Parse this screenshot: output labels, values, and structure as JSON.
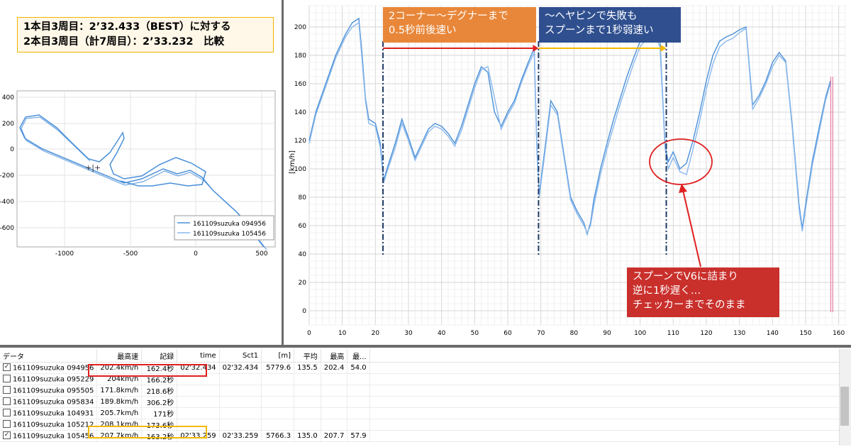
{
  "title": {
    "line1": "1本目3周目：2’32.433（BEST）に対する",
    "line2": "2本目3周目（計7周目）：2’33.232　比較"
  },
  "track_map": {
    "x_ticks": [
      "-1000",
      "-500",
      "0",
      "500"
    ],
    "y_ticks": [
      "400",
      "200",
      "0",
      "-200",
      "-400",
      "-600"
    ],
    "legend": [
      "161109suzuka 094956",
      "161109suzuka 105456"
    ]
  },
  "speed_chart": {
    "y_unit": "[km/h]",
    "x_ticks": [
      "0",
      "10",
      "20",
      "30",
      "40",
      "50",
      "60",
      "70",
      "80",
      "90",
      "100",
      "110",
      "120",
      "130",
      "140",
      "150",
      "160"
    ],
    "y_ticks": [
      "200",
      "180",
      "160",
      "140",
      "120",
      "100",
      "80",
      "60",
      "40",
      "20",
      "0"
    ]
  },
  "callouts": {
    "orange_line1": "2コーナー～デグナーまで",
    "orange_line2": "0.5秒前後速い",
    "blue_line1": "～ヘヤピンで失敗も",
    "blue_line2": "スプーンまで1秒弱速い",
    "red_line1": "スプーンでV6に詰まり",
    "red_line2": "逆に1秒遅く…",
    "red_line3": "チェッカーまでそのまま"
  },
  "table": {
    "headers": [
      "データ",
      "最高速",
      "記録",
      "time",
      "Sct1",
      "[m]",
      "平均",
      "最高",
      "最..."
    ],
    "rows": [
      {
        "checked": "✓",
        "name": "161109suzuka 094956",
        "maxspeed": "202.4km/h",
        "record": "162.4秒",
        "time": "02'32.434",
        "sct1": "02'32.434",
        "m": "5779.6",
        "avg": "135.5",
        "max": "202.4",
        "min": "54.0"
      },
      {
        "checked": "",
        "name": "161109suzuka 095229",
        "maxspeed": "204km/h",
        "record": "166.2秒",
        "time": "",
        "sct1": "",
        "m": "",
        "avg": "",
        "max": "",
        "min": ""
      },
      {
        "checked": "",
        "name": "161109suzuka 095505",
        "maxspeed": "171.8km/h",
        "record": "218.6秒",
        "time": "",
        "sct1": "",
        "m": "",
        "avg": "",
        "max": "",
        "min": ""
      },
      {
        "checked": "",
        "name": "161109suzuka 095834",
        "maxspeed": "189.8km/h",
        "record": "306.2秒",
        "time": "",
        "sct1": "",
        "m": "",
        "avg": "",
        "max": "",
        "min": ""
      },
      {
        "checked": "",
        "name": "161109suzuka 104931",
        "maxspeed": "205.7km/h",
        "record": "171秒",
        "time": "",
        "sct1": "",
        "m": "",
        "avg": "",
        "max": "",
        "min": ""
      },
      {
        "checked": "",
        "name": "161109suzuka 105212",
        "maxspeed": "208.1km/h",
        "record": "173.6秒",
        "time": "",
        "sct1": "",
        "m": "",
        "avg": "",
        "max": "",
        "min": ""
      },
      {
        "checked": "✓",
        "name": "161109suzuka 105456",
        "maxspeed": "207.7km/h",
        "record": "163.2秒",
        "time": "02'33.259",
        "sct1": "02'33.259",
        "m": "5766.3",
        "avg": "135.0",
        "max": "207.7",
        "min": "57.9"
      }
    ]
  },
  "colors": {
    "series": "#4a90d9",
    "series2": "#8ab8ec",
    "orange": "#e8873a",
    "blue": "#2f4f8f",
    "red": "#c9302c",
    "highlight_red": "#e02020",
    "highlight_yellow": "#f5b800"
  },
  "chart_data": {
    "type": "line",
    "xlabel": "",
    "ylabel": "[km/h]",
    "xlim": [
      0,
      162
    ],
    "ylim": [
      -10,
      215
    ],
    "series": [
      {
        "name": "161109suzuka 094956",
        "x": [
          0,
          2,
          5,
          8,
          11,
          13,
          15,
          16,
          17,
          18,
          20,
          21.5,
          22.5,
          23.5,
          26,
          28,
          30,
          32,
          34,
          36,
          38,
          40,
          42,
          44,
          46,
          48,
          50,
          52,
          54,
          56,
          58,
          60,
          62,
          64,
          66,
          68,
          68.8,
          69.5,
          71,
          73,
          75,
          77,
          79,
          81,
          83,
          84,
          85,
          86,
          88,
          90,
          92,
          94,
          96,
          98,
          100,
          102,
          104,
          106,
          107.5,
          108.5,
          110,
          112,
          114,
          116,
          118,
          120,
          122,
          124,
          126,
          128,
          130,
          132,
          133,
          134,
          136,
          138,
          140,
          142,
          144,
          146,
          148,
          149,
          150,
          152,
          154,
          156,
          157.5
        ],
        "y": [
          120,
          140,
          160,
          180,
          195,
          203,
          206,
          180,
          150,
          135,
          132,
          118,
          92,
          100,
          118,
          135,
          122,
          108,
          118,
          128,
          132,
          130,
          125,
          118,
          130,
          145,
          160,
          172,
          168,
          140,
          130,
          140,
          148,
          162,
          174,
          185,
          115,
          82,
          110,
          148,
          140,
          110,
          80,
          70,
          62,
          54,
          62,
          78,
          100,
          118,
          135,
          150,
          165,
          178,
          190,
          195,
          200,
          190,
          117,
          105,
          112,
          100,
          104,
          120,
          140,
          162,
          180,
          190,
          193,
          195,
          198,
          200,
          172,
          145,
          152,
          162,
          175,
          182,
          176,
          130,
          75,
          58,
          75,
          105,
          128,
          150,
          162
        ]
      },
      {
        "name": "161109suzuka 105456",
        "x": [
          0,
          2,
          5,
          8,
          11,
          13,
          15,
          16,
          17,
          18,
          20,
          21.5,
          22.5,
          23.5,
          26,
          28,
          30,
          32,
          34,
          36,
          38,
          40,
          42,
          44,
          46,
          48,
          50,
          52,
          54,
          56,
          58,
          60,
          62,
          64,
          66,
          68,
          68.8,
          69.5,
          71,
          73,
          75,
          77,
          79,
          81,
          83,
          84,
          85,
          86,
          88,
          90,
          92,
          94,
          96,
          98,
          100,
          102,
          104,
          106,
          107.5,
          108.5,
          110,
          112,
          114,
          116,
          118,
          120,
          122,
          124,
          126,
          128,
          130,
          132,
          133,
          134,
          136,
          138,
          140,
          142,
          144,
          146,
          148,
          149,
          150,
          152,
          154,
          156,
          157.5
        ],
        "y": [
          118,
          138,
          158,
          178,
          193,
          200,
          203,
          176,
          148,
          132,
          130,
          115,
          90,
          98,
          115,
          132,
          120,
          106,
          116,
          126,
          130,
          128,
          123,
          116,
          127,
          142,
          157,
          170,
          172,
          150,
          128,
          138,
          146,
          160,
          172,
          182,
          112,
          80,
          107,
          145,
          138,
          108,
          78,
          68,
          60,
          55,
          60,
          74,
          96,
          114,
          130,
          146,
          160,
          174,
          186,
          192,
          196,
          186,
          115,
          100,
          108,
          98,
          96,
          114,
          134,
          156,
          174,
          186,
          190,
          192,
          196,
          199,
          170,
          142,
          150,
          160,
          172,
          180,
          175,
          128,
          72,
          56,
          72,
          102,
          125,
          148,
          160
        ]
      }
    ]
  }
}
